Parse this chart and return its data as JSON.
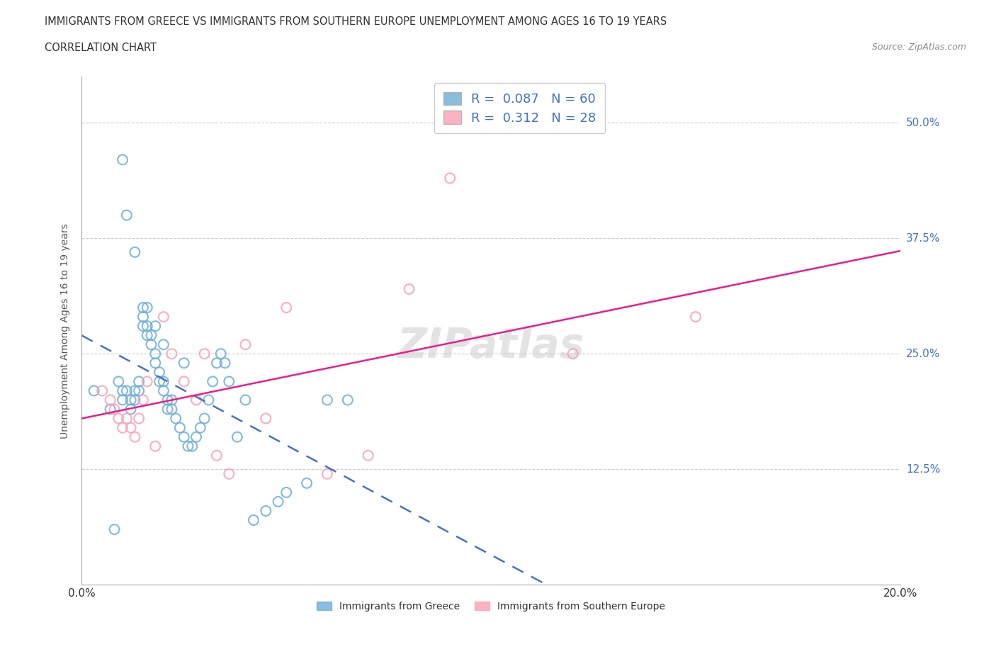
{
  "title_line1": "IMMIGRANTS FROM GREECE VS IMMIGRANTS FROM SOUTHERN EUROPE UNEMPLOYMENT AMONG AGES 16 TO 19 YEARS",
  "title_line2": "CORRELATION CHART",
  "source_text": "Source: ZipAtlas.com",
  "ylabel": "Unemployment Among Ages 16 to 19 years",
  "xlim": [
    0.0,
    0.2
  ],
  "ylim": [
    0.0,
    0.55
  ],
  "ytick_vals": [
    0.0,
    0.125,
    0.25,
    0.375,
    0.5
  ],
  "ytick_labels": [
    "",
    "12.5%",
    "25.0%",
    "37.5%",
    "50.0%"
  ],
  "xtick_vals": [
    0.0,
    0.05,
    0.1,
    0.15,
    0.2
  ],
  "xtick_labels": [
    "0.0%",
    "",
    "",
    "",
    "20.0%"
  ],
  "greece_color": "#6baed6",
  "greece_line_color": "#4472C4",
  "southern_color": "#fa9fb5",
  "southern_line_color": "#E91E8C",
  "greece_R": 0.087,
  "greece_N": 60,
  "southern_R": 0.312,
  "southern_N": 28,
  "greece_scatter_x": [
    0.003,
    0.007,
    0.008,
    0.009,
    0.01,
    0.01,
    0.011,
    0.012,
    0.012,
    0.013,
    0.013,
    0.014,
    0.014,
    0.015,
    0.015,
    0.015,
    0.016,
    0.016,
    0.017,
    0.017,
    0.018,
    0.018,
    0.019,
    0.019,
    0.02,
    0.02,
    0.021,
    0.021,
    0.022,
    0.022,
    0.023,
    0.024,
    0.025,
    0.026,
    0.027,
    0.028,
    0.029,
    0.03,
    0.031,
    0.032,
    0.033,
    0.034,
    0.035,
    0.036,
    0.038,
    0.04,
    0.042,
    0.045,
    0.048,
    0.05,
    0.055,
    0.06,
    0.065,
    0.01,
    0.011,
    0.013,
    0.016,
    0.018,
    0.02,
    0.025
  ],
  "greece_scatter_y": [
    0.21,
    0.19,
    0.06,
    0.22,
    0.2,
    0.21,
    0.21,
    0.2,
    0.19,
    0.21,
    0.2,
    0.21,
    0.22,
    0.3,
    0.29,
    0.28,
    0.28,
    0.27,
    0.27,
    0.26,
    0.25,
    0.24,
    0.23,
    0.22,
    0.22,
    0.21,
    0.2,
    0.19,
    0.2,
    0.19,
    0.18,
    0.17,
    0.16,
    0.15,
    0.15,
    0.16,
    0.17,
    0.18,
    0.2,
    0.22,
    0.24,
    0.25,
    0.24,
    0.22,
    0.16,
    0.2,
    0.07,
    0.08,
    0.09,
    0.1,
    0.11,
    0.2,
    0.2,
    0.46,
    0.4,
    0.36,
    0.3,
    0.28,
    0.26,
    0.24
  ],
  "southern_scatter_x": [
    0.005,
    0.007,
    0.008,
    0.009,
    0.01,
    0.011,
    0.012,
    0.013,
    0.014,
    0.015,
    0.016,
    0.018,
    0.02,
    0.022,
    0.025,
    0.028,
    0.03,
    0.033,
    0.036,
    0.04,
    0.045,
    0.05,
    0.06,
    0.07,
    0.08,
    0.09,
    0.12,
    0.15
  ],
  "southern_scatter_y": [
    0.21,
    0.2,
    0.19,
    0.18,
    0.17,
    0.18,
    0.17,
    0.16,
    0.18,
    0.2,
    0.22,
    0.15,
    0.29,
    0.25,
    0.22,
    0.2,
    0.25,
    0.14,
    0.12,
    0.26,
    0.18,
    0.3,
    0.12,
    0.14,
    0.32,
    0.44,
    0.25,
    0.29
  ],
  "watermark": "ZIPatlas",
  "grid_color": "#cccccc",
  "background_color": "#ffffff"
}
